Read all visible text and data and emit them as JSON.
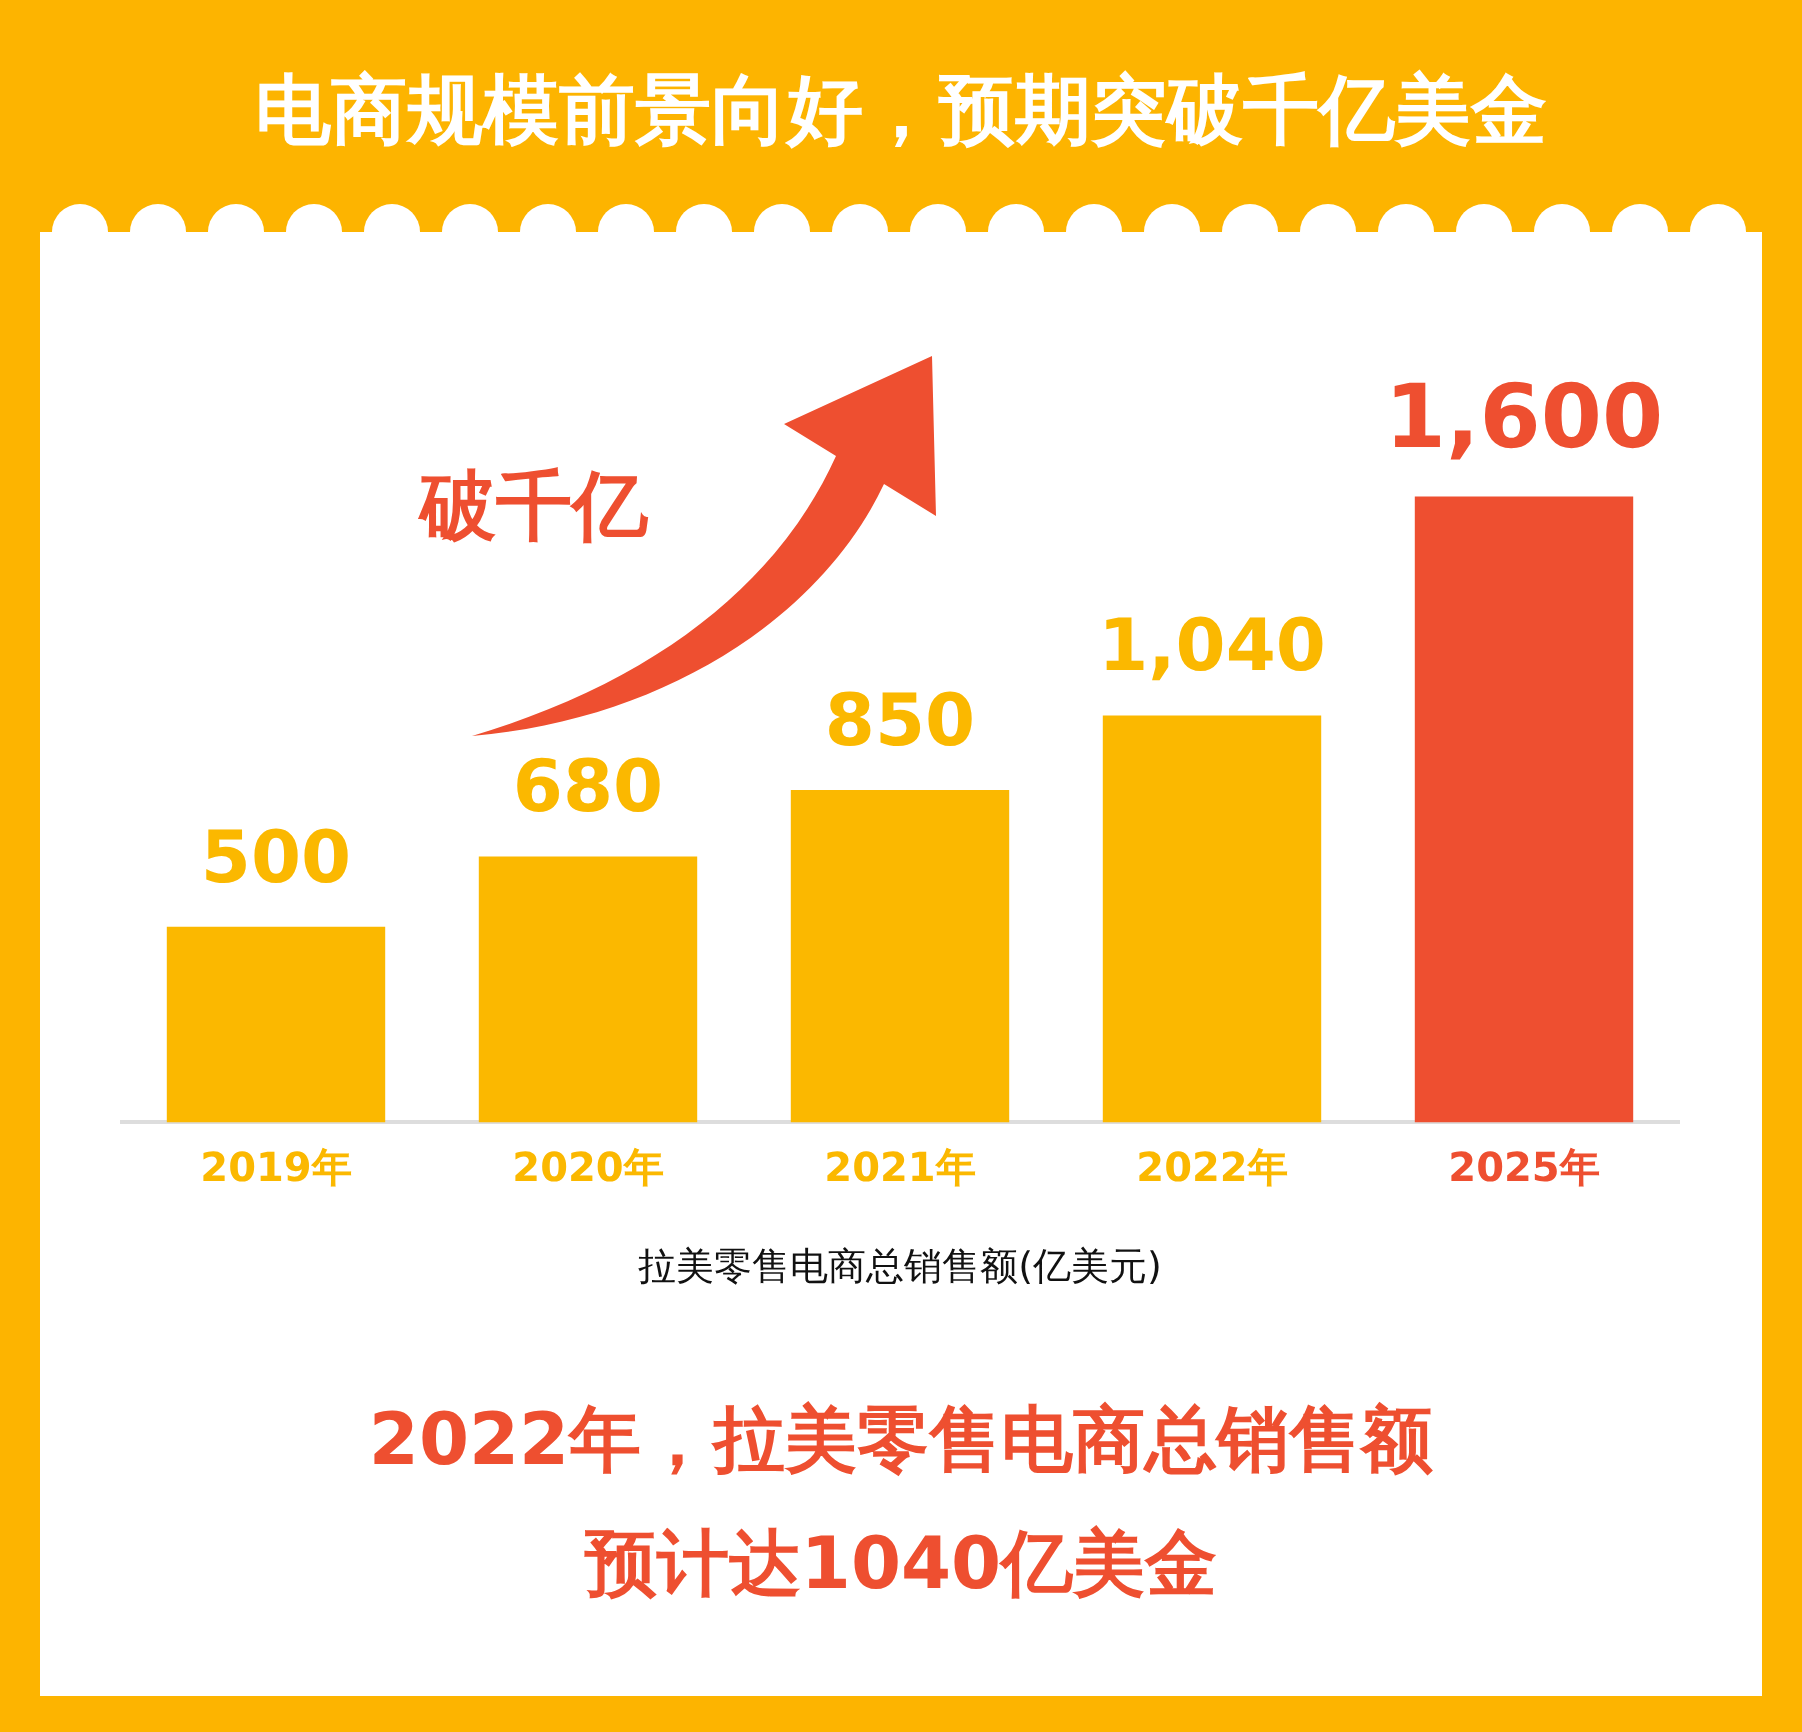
{
  "chart_data": {
    "type": "bar",
    "title": "电商规模前景向好，预期突破千亿美金",
    "categories": [
      "2019年",
      "2020年",
      "2021年",
      "2022年",
      "2025年"
    ],
    "values": [
      500,
      680,
      850,
      1040,
      1600
    ],
    "value_labels": [
      "500",
      "680",
      "850",
      "1,040",
      "1,600"
    ],
    "colors": [
      "#fbb800",
      "#fbb800",
      "#fbb800",
      "#fbb800",
      "#ee4f30"
    ],
    "xlabel": "拉美零售电商总销售额(亿美元)",
    "annotations": [
      "破千亿",
      "2022年，拉美零售电商总销售额",
      "预计达1040亿美金"
    ],
    "grid": false,
    "legend": false
  }
}
